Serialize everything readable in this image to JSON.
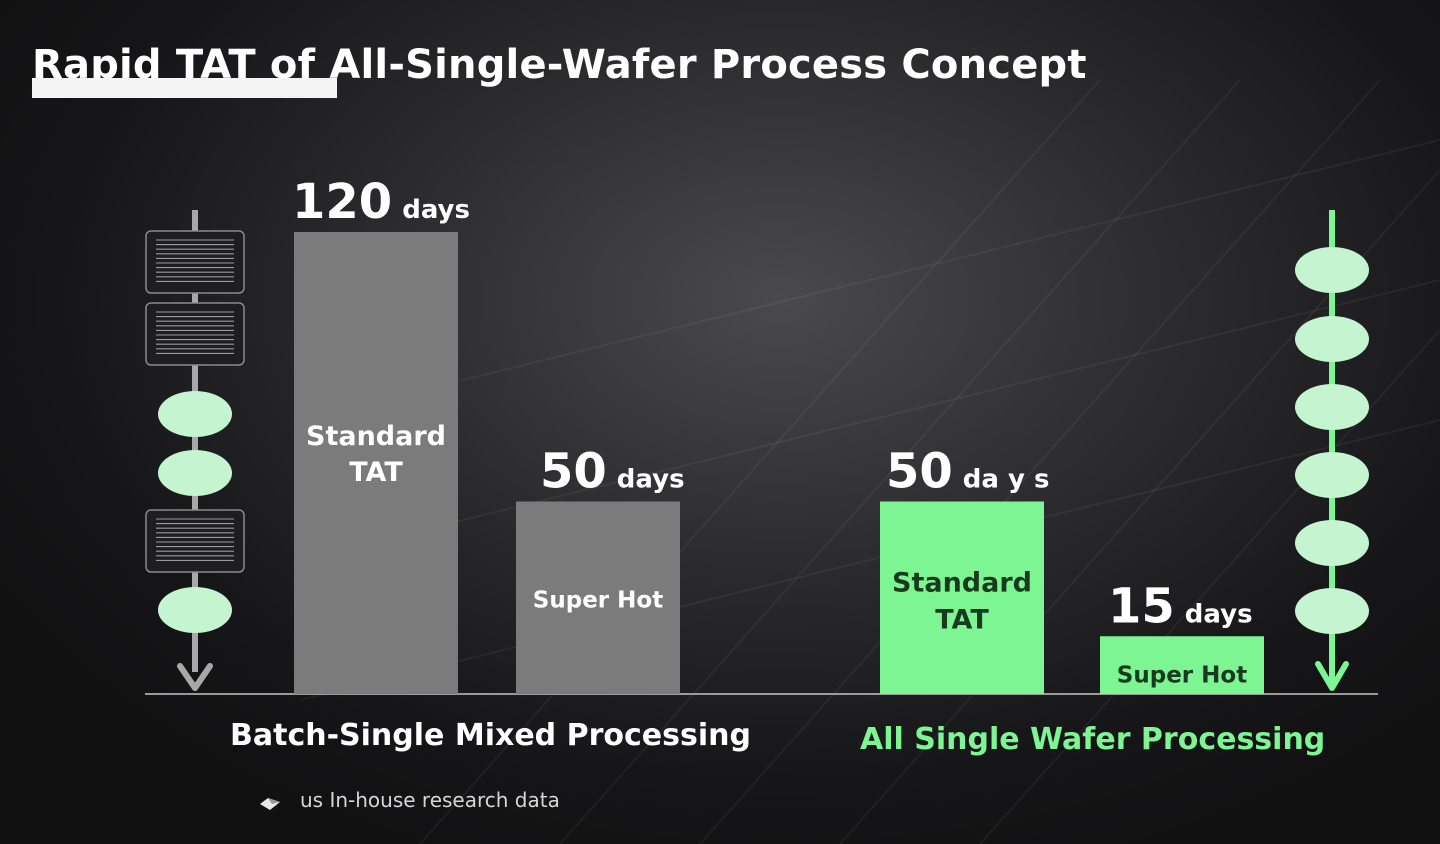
{
  "title": "Rapid TAT of All-Single-Wafer Process Concept",
  "chart_data": {
    "type": "bar",
    "unit": "days",
    "groups": [
      {
        "name": "Batch-Single Mixed Processing",
        "bars": [
          {
            "label": "Standard TAT",
            "value": 120,
            "value_text": "120",
            "unit_text": "days",
            "color": "#7b7b7b"
          },
          {
            "label": "Super Hot",
            "value": 50,
            "value_text": "50",
            "unit_text": "days",
            "color": "#7b7b7b"
          }
        ]
      },
      {
        "name": "All Single Wafer Processing",
        "bars": [
          {
            "label": "Standard TAT",
            "value": 50,
            "value_text": "50",
            "unit_text": "da y s",
            "color": "#7cf592"
          },
          {
            "label": "Super Hot",
            "value": 15,
            "value_text": "15",
            "unit_text": "days",
            "color": "#7cf592"
          }
        ]
      }
    ],
    "ylim": [
      0,
      120
    ],
    "grid": false,
    "legend": "none"
  },
  "footer": {
    "source_text": "us In-house research data"
  },
  "colors": {
    "batch_bar": "#7b7b7b",
    "single_bar": "#7cf592",
    "batch_label": "#ffffff",
    "single_label": "#7cf592",
    "wafer_tile": "#7cf592"
  },
  "icons": {
    "left_flow": [
      "batch-cassette-icon",
      "batch-cassette-icon",
      "single-wafer-icon",
      "single-wafer-icon",
      "batch-cassette-icon",
      "single-wafer-icon"
    ],
    "right_flow": [
      "single-wafer-icon",
      "single-wafer-icon",
      "single-wafer-icon",
      "single-wafer-icon",
      "single-wafer-icon",
      "single-wafer-icon"
    ]
  }
}
